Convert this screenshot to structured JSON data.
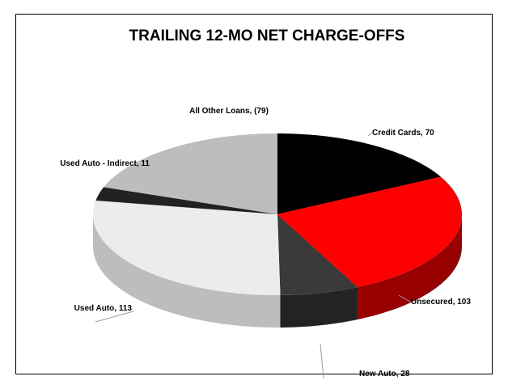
{
  "chart_data": {
    "type": "pie3d",
    "title": "TRAILING 12-MO NET CHARGE-OFFS",
    "categories": [
      "Credit Cards",
      "Unsecured",
      "New Auto",
      "Used Auto",
      "Used Auto - Indirect",
      "All Other Loans"
    ],
    "values": [
      70,
      103,
      28,
      113,
      11,
      -79
    ],
    "value_labels": [
      "70",
      "103",
      "28",
      "113",
      "11",
      "(79)"
    ],
    "label_separator": ", ",
    "colors": [
      "#000000",
      "#ff0000",
      "#3a3a3a",
      "#ececec",
      "#222222",
      "#bdbdbd"
    ]
  }
}
